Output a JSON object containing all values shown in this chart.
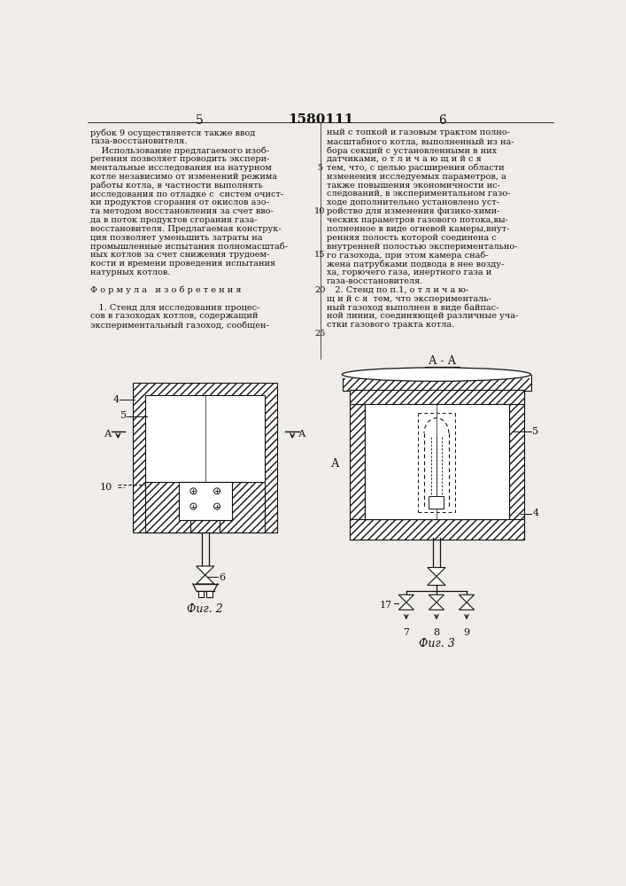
{
  "page_color": "#f0ede8",
  "text_color": "#111111",
  "line_color": "#111111",
  "page_number_left": "5",
  "page_number_center": "1580111",
  "page_number_right": "6",
  "col1_lines": [
    "рубок 9 осуществляется также ввод",
    "газа-восстановителя.",
    "    Использование предлагаемого изоб-",
    "ретения позволяет проводить экспери-",
    "ментальные исследования на натурном",
    "котле независимо от изменений режима",
    "работы котла, в частности выполнять",
    "исследования по отладке с  систем очист-",
    "ки продуктов сгорания от окислов азо-",
    "та методом восстановления за счет вво-",
    "да в поток продуктов сгорания газа-",
    "восстановителя. Предлагаемая конструк-",
    "ция позволяет уменьшить затраты на",
    "промышленные испытания полномасштаб-",
    "ных котлов за счет снижения трудоем-",
    "кости и времени проведения испытания",
    "натурных котлов.",
    "",
    "Ф о р м у л а   и з о б р е т е н и я",
    "",
    "   1. Стенд для исследования процес-",
    "сов в газоходах котлов, содержащий",
    "экспериментальный газоход, сообщен-"
  ],
  "col2_lines": [
    "ный с топкой и газовым трактом полно-",
    "масштабного котла, выполненный из на-",
    "бора секций с установленными в них",
    "датчиками, о т л и ч а ю щ и й с я",
    "тем, что, с целью расширения области",
    "изменения исследуемых параметров, а",
    "также повышения экономичности ис-",
    "следований, в экспериментальном газо-",
    "ходе дополнительно установлено уст-",
    "ройство для изменения физико-хими-",
    "ческих параметров газового потока,вы-",
    "полненное в виде огневой камеры,внут-",
    "ренняя полость которой соединена с",
    "внутренней полостью экспериментально-",
    "го газохода, при этом камера снаб-",
    "жена патрубками подвода в нее возду-",
    "ха, горючего газа, инертного газа и",
    "газа-восстановителя.",
    "   2. Стенд по п.1, о т л и ч а ю-",
    "щ и й с я  тем, что эксперименталь-",
    "ный газоход выполнен в виде байпас-",
    "ной линии, соединяющей различные уча-",
    "стки газового тракта котла."
  ],
  "fig2_label": "Фиг. 2",
  "fig3_label": "Фиг. 3",
  "aa_label": "А - А"
}
